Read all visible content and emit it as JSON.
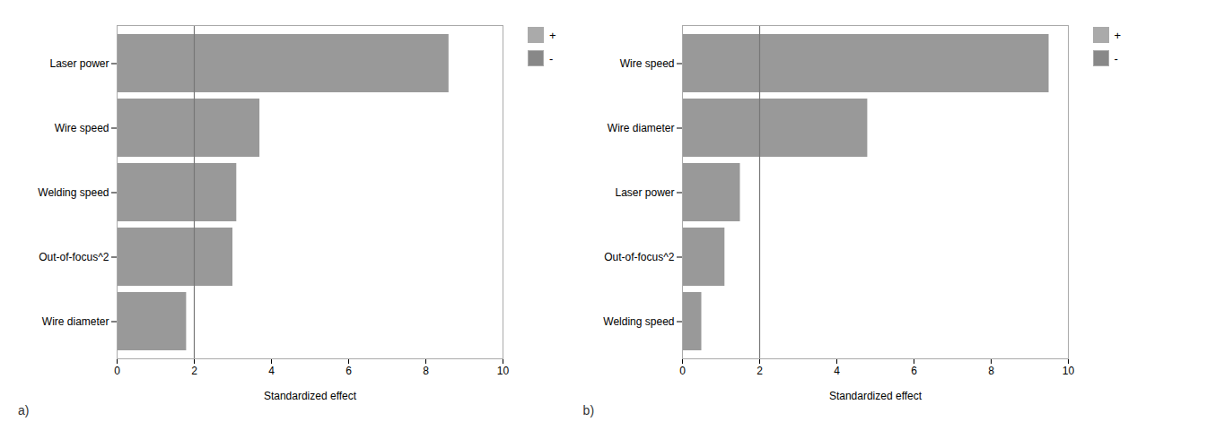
{
  "chart_data": [
    {
      "type": "bar",
      "orientation": "horizontal",
      "title": "a)",
      "categories": [
        "Laser power",
        "Wire speed",
        "Welding speed",
        "Out-of-focus^2",
        "Wire diameter"
      ],
      "values": [
        8.6,
        3.7,
        3.1,
        3.0,
        1.8
      ],
      "colors": [
        "#999999",
        "#999999",
        "#999999",
        "#999999",
        "#999999"
      ],
      "xlabel": "Standardized effect",
      "xlim": [
        0,
        10
      ],
      "xticks": [
        0,
        2,
        4,
        6,
        8,
        10
      ],
      "vline": 2.0,
      "legend": "right",
      "legend_entries": [
        {
          "name": "+",
          "color": "#aaaaaa"
        },
        {
          "name": "-",
          "color": "#888888"
        }
      ]
    },
    {
      "type": "bar",
      "orientation": "horizontal",
      "title": "b)",
      "categories": [
        "Wire speed",
        "Wire diameter",
        "Laser power",
        "Out-of-focus^2",
        "Welding speed"
      ],
      "values": [
        9.5,
        4.8,
        1.5,
        1.1,
        0.5
      ],
      "colors": [
        "#999999",
        "#999999",
        "#999999",
        "#999999",
        "#999999"
      ],
      "xlabel": "Standardized effect",
      "xlim": [
        0,
        10
      ],
      "xticks": [
        0,
        2,
        4,
        6,
        8,
        10
      ],
      "vline": 2.0,
      "legend": "right",
      "legend_entries": [
        {
          "name": "+",
          "color": "#aaaaaa"
        },
        {
          "name": "-",
          "color": "#888888"
        }
      ]
    }
  ]
}
